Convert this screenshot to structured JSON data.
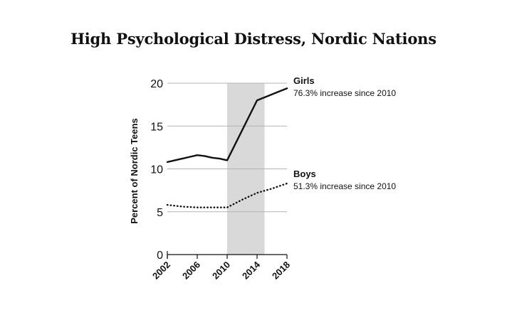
{
  "chart_data": {
    "type": "line",
    "title": "High Psychological Distress, Nordic Nations",
    "xlabel": "",
    "ylabel": "Percent of Nordic Teens",
    "xlim": [
      2002,
      2018
    ],
    "ylim": [
      0,
      20
    ],
    "x_ticks": [
      "2002",
      "2006",
      "2010",
      "2014",
      "2018"
    ],
    "y_ticks": [
      "0",
      "5",
      "10",
      "15",
      "20"
    ],
    "grid": "horizontal",
    "highlight_band": {
      "x_start": 2010,
      "x_end": 2015,
      "color": "#d9d9d9"
    },
    "series": [
      {
        "name": "Girls",
        "note": "76.3% increase since 2010",
        "style": "solid",
        "color": "#111111",
        "x": [
          2002,
          2003,
          2004,
          2005,
          2006,
          2007,
          2008,
          2009,
          2010,
          2014,
          2018
        ],
        "values": [
          10.8,
          11.0,
          11.2,
          11.4,
          11.6,
          11.5,
          11.3,
          11.2,
          11.0,
          18.0,
          19.4
        ]
      },
      {
        "name": "Boys",
        "note": "51.3% increase since 2010",
        "style": "dotted",
        "color": "#111111",
        "x": [
          2002,
          2004,
          2006,
          2008,
          2010,
          2012,
          2014,
          2016,
          2018
        ],
        "values": [
          5.8,
          5.6,
          5.5,
          5.5,
          5.5,
          6.4,
          7.2,
          7.7,
          8.3
        ]
      }
    ]
  }
}
